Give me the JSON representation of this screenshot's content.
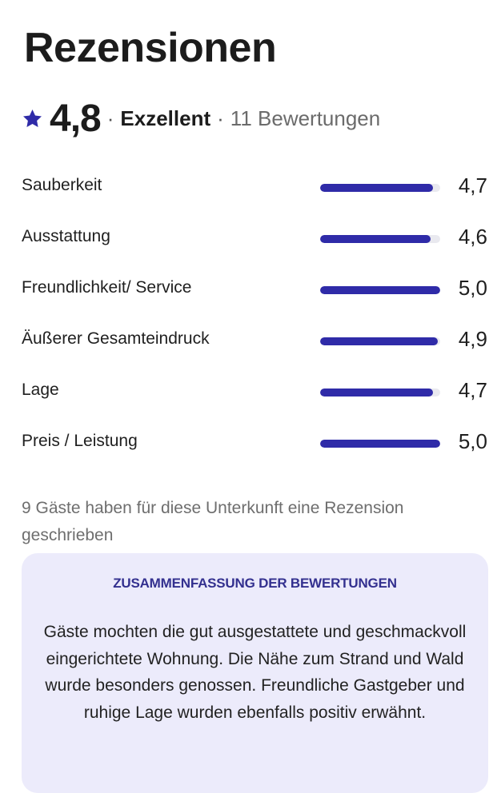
{
  "header": {
    "title": "Rezensionen"
  },
  "rating_summary": {
    "score": "4,8",
    "separator": "·",
    "quality_label": "Exzellent",
    "reviews_count": "11 Bewertungen",
    "star_icon": "star-icon",
    "accent_color": "#2f2ba8"
  },
  "category_ratings": [
    {
      "label": "Sauberkeit",
      "value": "4,7",
      "score": 4.7
    },
    {
      "label": "Ausstattung",
      "value": "4,6",
      "score": 4.6
    },
    {
      "label": "Freundlichkeit/ Service",
      "value": "5,0",
      "score": 5.0
    },
    {
      "label": "Äußerer Gesamteindruck",
      "value": "4,9",
      "score": 4.9
    },
    {
      "label": "Lage",
      "value": "4,7",
      "score": 4.7
    },
    {
      "label": "Preis / Leistung",
      "value": "5,0",
      "score": 5.0
    }
  ],
  "rating_scale_max": 5,
  "footnote": "9 Gäste haben für diese Unterkunft eine Rezension geschrieben",
  "summary_card": {
    "heading": "ZUSAMMENFASSUNG DER BEWERTUNGEN",
    "text": "Gäste mochten die gut ausgestattete und geschmackvoll eingerichtete Wohnung. Die Nähe zum Strand und Wald wurde besonders genossen. Freundliche Gastgeber und ruhige Lage wurden ebenfalls positiv erwähnt.",
    "background_color": "#ecebfb",
    "heading_color": "#33308f"
  }
}
